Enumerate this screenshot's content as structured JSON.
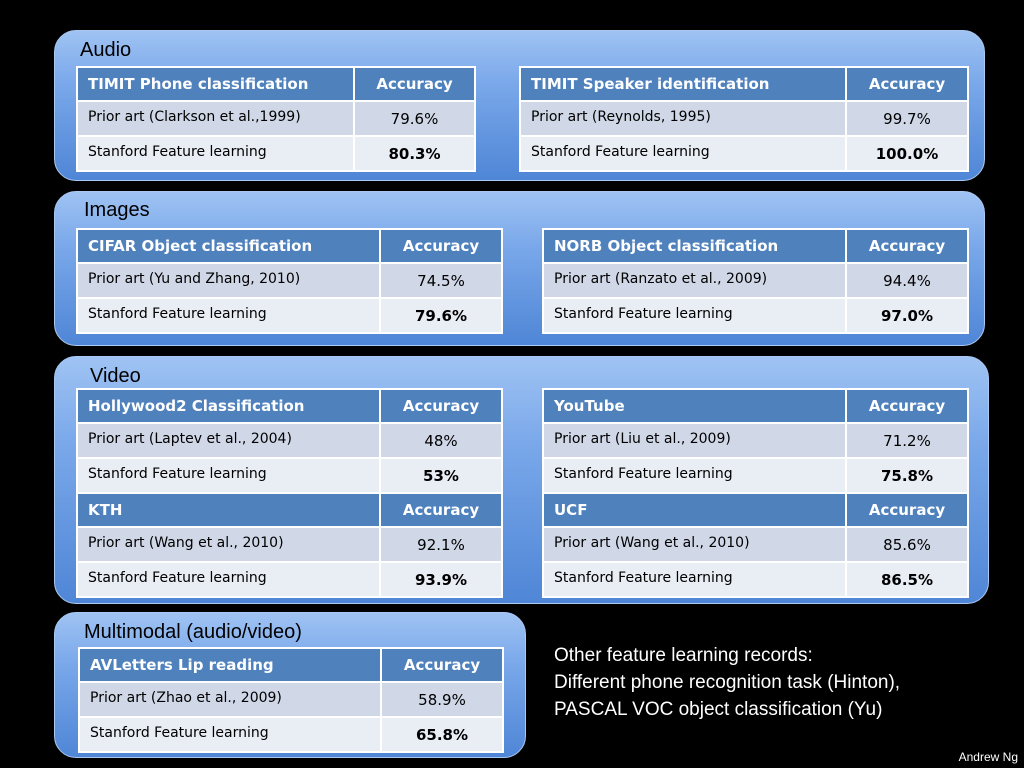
{
  "sections": {
    "audio": "Audio",
    "images": "Images",
    "video": "Video",
    "multimodal": "Multimodal (audio/video)"
  },
  "tables": [
    {
      "task": "TIMIT Phone classification",
      "metric": "Accuracy",
      "prior_label": "Prior art (Clarkson et al.,1999)",
      "prior_value": "79.6%",
      "ours_label": "Stanford Feature learning",
      "ours_value": "80.3%"
    },
    {
      "task": "TIMIT Speaker identification",
      "metric": "Accuracy",
      "prior_label": "Prior art (Reynolds, 1995)",
      "prior_value": "99.7%",
      "ours_label": "Stanford Feature learning",
      "ours_value": "100.0%"
    },
    {
      "task": "CIFAR Object classification",
      "metric": "Accuracy",
      "prior_label": "Prior art (Yu and Zhang, 2010)",
      "prior_value": "74.5%",
      "ours_label": "Stanford Feature learning",
      "ours_value": "79.6%"
    },
    {
      "task": "NORB Object classification",
      "metric": "Accuracy",
      "prior_label": "Prior art (Ranzato et al., 2009)",
      "prior_value": "94.4%",
      "ours_label": "Stanford Feature learning",
      "ours_value": "97.0%"
    },
    {
      "task": "Hollywood2 Classification",
      "metric": "Accuracy",
      "prior_label": "Prior art (Laptev et al., 2004)",
      "prior_value": "48%",
      "ours_label": "Stanford Feature learning",
      "ours_value": "53%"
    },
    {
      "task": "YouTube",
      "metric": "Accuracy",
      "prior_label": "Prior art (Liu et al., 2009)",
      "prior_value": "71.2%",
      "ours_label": "Stanford Feature learning",
      "ours_value": "75.8%"
    },
    {
      "task": "KTH",
      "metric": "Accuracy",
      "prior_label": "Prior art (Wang et al., 2010)",
      "prior_value": "92.1%",
      "ours_label": "Stanford Feature learning",
      "ours_value": "93.9%"
    },
    {
      "task": "UCF",
      "metric": "Accuracy",
      "prior_label": "Prior art (Wang et al., 2010)",
      "prior_value": "85.6%",
      "ours_label": "Stanford Feature learning",
      "ours_value": "86.5%"
    },
    {
      "task": "AVLetters Lip reading",
      "metric": "Accuracy",
      "prior_label": "Prior art (Zhao et al., 2009)",
      "prior_value": "58.9%",
      "ours_label": "Stanford Feature learning",
      "ours_value": "65.8%"
    }
  ],
  "note": {
    "line1": "Other feature learning records:",
    "line2": "Different phone recognition task (Hinton),",
    "line3": "PASCAL VOC object classification (Yu)"
  },
  "credit": "Andrew Ng",
  "colors": {
    "header": "#4f81bd",
    "row_odd": "#d0d8e8",
    "row_even": "#e9edf4"
  }
}
